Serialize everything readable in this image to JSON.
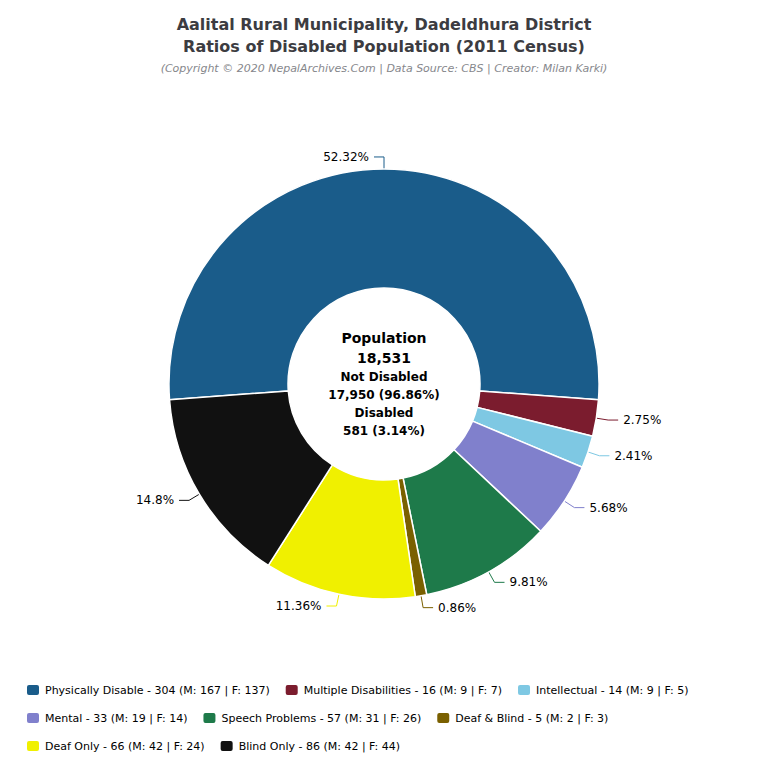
{
  "chart_data": {
    "type": "pie",
    "title": "Aalital Rural Municipality, Dadeldhura District\nRatios of Disabled Population (2011 Census)",
    "subtitle": "(Copyright © 2020 NepalArchives.Com | Data Source: CBS | Creator: Milan Karki)",
    "annotations": [
      "Population",
      "18,531",
      "Not Disabled",
      "17,950 (96.86%)",
      "Disabled",
      "581 (3.14%)"
    ],
    "categories": [
      "Physically Disable - 304 (M: 167 | F: 137)",
      "Multiple Disabilities - 16 (M: 9 | F: 7)",
      "Intellectual - 14 (M: 9 | F: 5)",
      "Mental - 33 (M: 19 | F: 14)",
      "Speech Problems - 57 (M: 31 | F: 26)",
      "Deaf & Blind - 5 (M: 2 | F: 3)",
      "Deaf Only - 66 (M: 42 | F: 24)",
      "Blind Only - 86 (M: 42 | F: 44)"
    ],
    "values": [
      52.32,
      2.75,
      2.41,
      5.68,
      9.81,
      0.86,
      11.36,
      14.8
    ],
    "value_labels": [
      "52.32%",
      "2.75%",
      "2.41%",
      "5.68%",
      "9.81%",
      "0.86%",
      "11.36%",
      "14.8%"
    ],
    "colors": [
      "#1a5c8a",
      "#7b1c2e",
      "#7ec8e3",
      "#8080cc",
      "#1e7a4a",
      "#7a6000",
      "#f0f000",
      "#111111"
    ],
    "data_labels": true,
    "legend": "bottom"
  }
}
